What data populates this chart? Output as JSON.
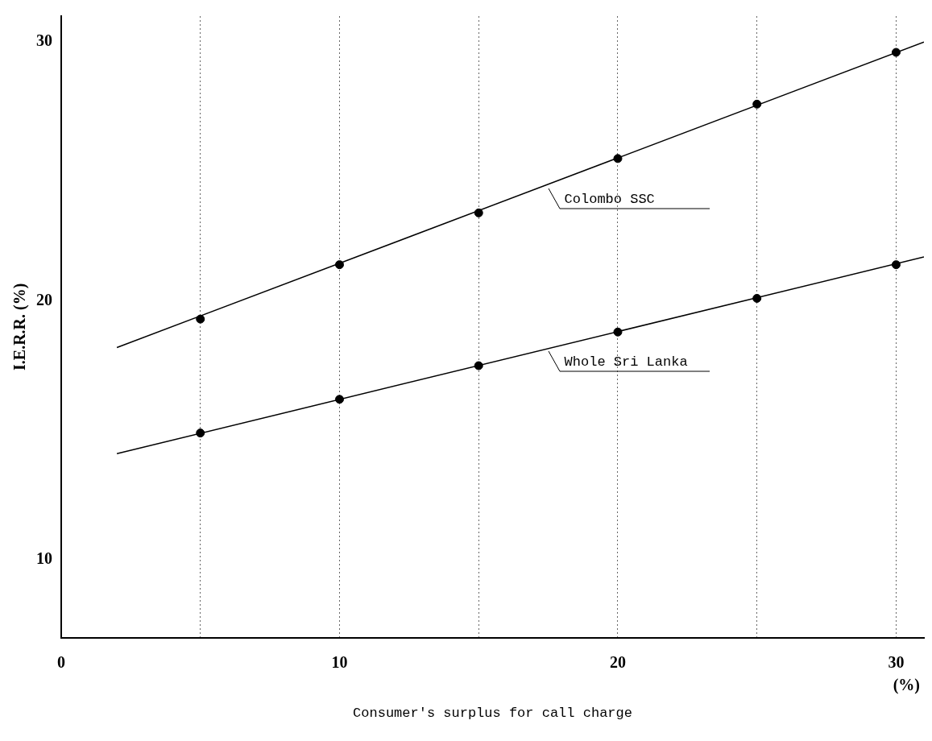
{
  "chart_data": {
    "type": "scatter",
    "xlabel": "Consumer's surplus for call charge",
    "ylabel": "I.E.R.R. (%)",
    "annotations": [
      "(%)"
    ],
    "xlim": [
      0,
      31
    ],
    "xticks": [
      0,
      {
        "value": 5,
        "label": null
      },
      10,
      {
        "value": 15,
        "label": null
      },
      20,
      {
        "value": 25,
        "label": null
      },
      30
    ],
    "ylim": [
      7,
      31
    ],
    "yticks": [
      10,
      20,
      30
    ],
    "grid": "x",
    "legend": false,
    "marker": "circle",
    "series": [
      {
        "name": "Colombo SSC",
        "color": "#000000",
        "x": [
          5,
          10,
          15,
          20,
          25,
          30
        ],
        "values": [
          19.3,
          21.4,
          23.4,
          25.5,
          27.6,
          29.6
        ]
      },
      {
        "type": "line",
        "marker": "none",
        "line_style": "solid",
        "color": "#000000",
        "x": [
          2,
          31
        ],
        "values": [
          18.2,
          30.0
        ]
      },
      {
        "name": "Whole Sri Lanka",
        "color": "#000000",
        "x": [
          5,
          10,
          15,
          20,
          25,
          30
        ],
        "values": [
          14.9,
          16.2,
          17.5,
          18.8,
          20.1,
          21.4
        ]
      },
      {
        "type": "line",
        "marker": "none",
        "line_style": "solid",
        "color": "#000000",
        "x": [
          2,
          31
        ],
        "values": [
          14.1,
          21.7
        ]
      }
    ]
  }
}
